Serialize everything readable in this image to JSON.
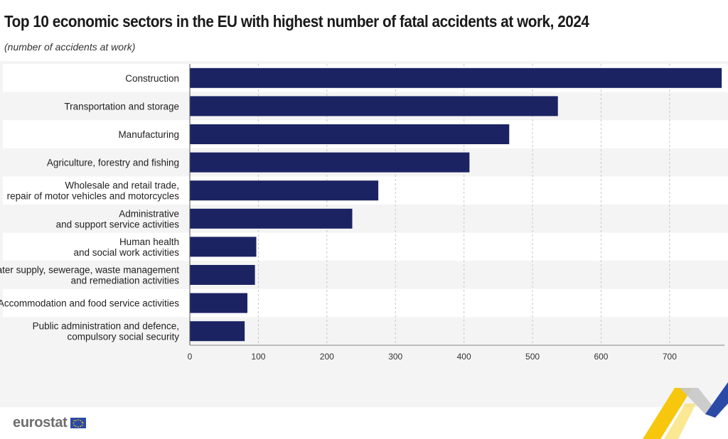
{
  "header": {
    "title": "Top 10 economic sectors in the EU with highest number of fatal accidents at work, 2024",
    "subtitle": "(number of accidents at work)"
  },
  "brand": {
    "name": "eurostat",
    "bar_color": "#1b2363",
    "accent_yellow": "#f5c400",
    "accent_blue": "#2b4aa6"
  },
  "chart_data": {
    "type": "bar",
    "orientation": "horizontal",
    "categories": [
      [
        "Construction"
      ],
      [
        "Transportation and storage"
      ],
      [
        "Manufacturing"
      ],
      [
        "Agriculture, forestry and fishing"
      ],
      [
        "Wholesale and retail trade,",
        "repair of motor vehicles and motorcycles"
      ],
      [
        "Administrative",
        "and support service activities"
      ],
      [
        "Human health",
        "and social work activities"
      ],
      [
        "Water supply, sewerage, waste management",
        "and remediation activities"
      ],
      [
        "Accommodation and food service activities"
      ],
      [
        "Public administration and defence,",
        "compulsory social security"
      ]
    ],
    "values": [
      776,
      537,
      466,
      408,
      275,
      237,
      97,
      95,
      84,
      80
    ],
    "xlim": [
      0,
      780
    ],
    "xticks": [
      0,
      100,
      200,
      300,
      400,
      500,
      600,
      700
    ],
    "grid": "vertical dashed",
    "legend": "none"
  }
}
